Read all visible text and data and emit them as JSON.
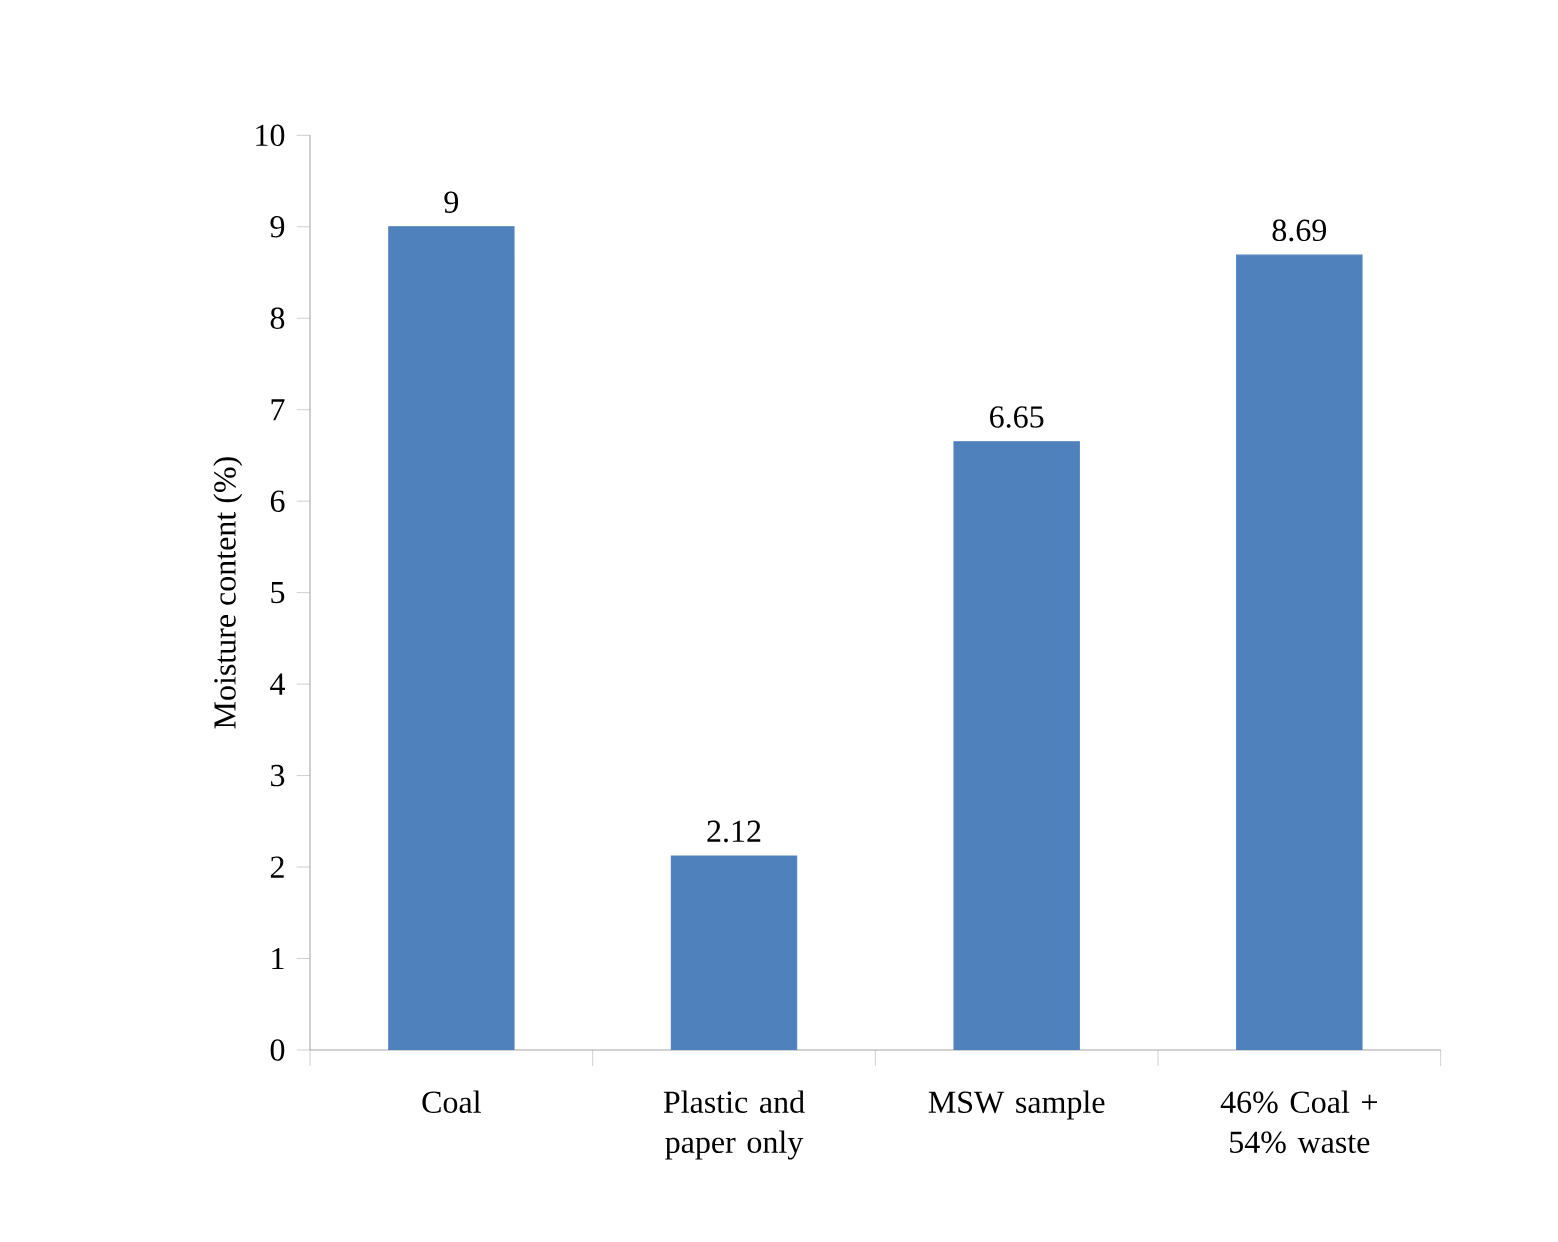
{
  "chart_data": {
    "type": "bar",
    "ylabel": "Moisture content (%)",
    "categories": [
      "Coal",
      "Plastic and paper only",
      "MSW sample",
      "46% Coal + 54% waste"
    ],
    "values": [
      9,
      2.12,
      6.65,
      8.69
    ],
    "color": "#4f81bd",
    "ylim": [
      0,
      10
    ],
    "yticks": [
      0,
      1,
      2,
      3,
      4,
      5,
      6,
      7,
      8,
      9,
      10
    ],
    "data_labels": true,
    "grid": false
  }
}
